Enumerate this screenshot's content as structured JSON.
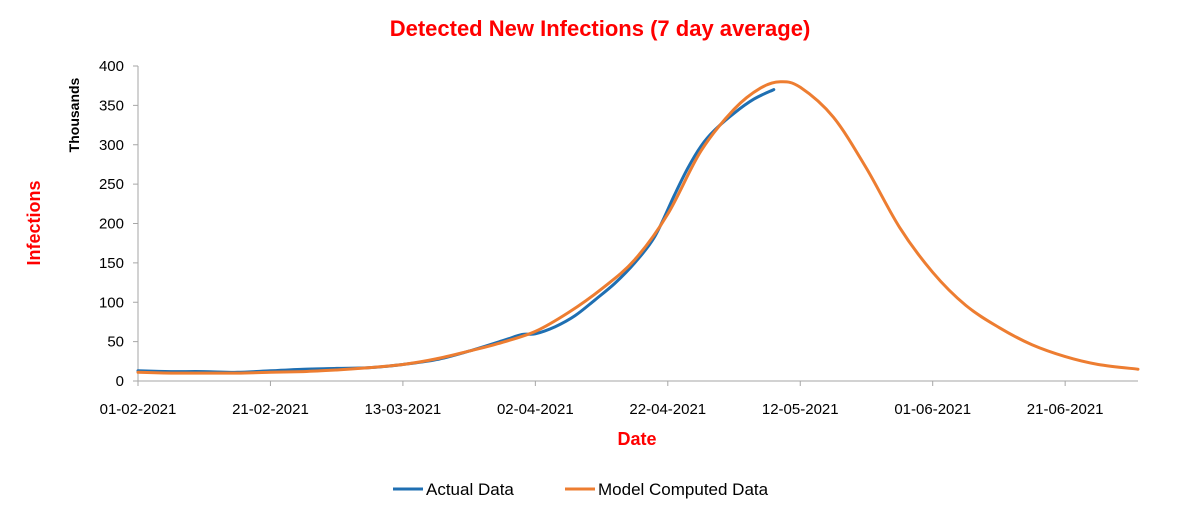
{
  "chart_data": {
    "type": "line",
    "title": "Detected New Infections (7 day average)",
    "ylabel": "Infections",
    "yunits": "Thousands",
    "xlabel": "Date",
    "title_color": "#ff0000",
    "label_color": "#ff0000",
    "ylim": [
      0,
      400
    ],
    "yticks": [
      0,
      50,
      100,
      150,
      200,
      250,
      300,
      350,
      400
    ],
    "xlim": [
      "2021-02-01",
      "2021-07-02"
    ],
    "xticks": [
      "01-02-2021",
      "21-02-2021",
      "13-03-2021",
      "02-04-2021",
      "22-04-2021",
      "12-05-2021",
      "01-06-2021",
      "21-06-2021"
    ],
    "grid": false,
    "legend_position": "bottom",
    "series": [
      {
        "name": "Actual Data",
        "color": "#1f6fb2",
        "points": [
          [
            "2021-02-01",
            13
          ],
          [
            "2021-02-06",
            12
          ],
          [
            "2021-02-11",
            12
          ],
          [
            "2021-02-16",
            11
          ],
          [
            "2021-02-21",
            13
          ],
          [
            "2021-02-26",
            15
          ],
          [
            "2021-03-03",
            16
          ],
          [
            "2021-03-08",
            17
          ],
          [
            "2021-03-13",
            21
          ],
          [
            "2021-03-18",
            27
          ],
          [
            "2021-03-23",
            38
          ],
          [
            "2021-03-28",
            51
          ],
          [
            "2021-03-31",
            59
          ],
          [
            "2021-04-02",
            60
          ],
          [
            "2021-04-05",
            69
          ],
          [
            "2021-04-08",
            83
          ],
          [
            "2021-04-11",
            103
          ],
          [
            "2021-04-14",
            124
          ],
          [
            "2021-04-17",
            150
          ],
          [
            "2021-04-20",
            183
          ],
          [
            "2021-04-23",
            236
          ],
          [
            "2021-04-25",
            270
          ],
          [
            "2021-04-27",
            298
          ],
          [
            "2021-04-29",
            318
          ],
          [
            "2021-05-02",
            340
          ],
          [
            "2021-05-05",
            358
          ],
          [
            "2021-05-08",
            370
          ]
        ]
      },
      {
        "name": "Model Computed Data",
        "color": "#ed7d31",
        "points": [
          [
            "2021-02-01",
            11
          ],
          [
            "2021-02-06",
            10
          ],
          [
            "2021-02-11",
            10
          ],
          [
            "2021-02-16",
            10
          ],
          [
            "2021-02-21",
            11
          ],
          [
            "2021-02-26",
            12
          ],
          [
            "2021-03-03",
            14
          ],
          [
            "2021-03-08",
            17
          ],
          [
            "2021-03-13",
            21
          ],
          [
            "2021-03-18",
            28
          ],
          [
            "2021-03-23",
            38
          ],
          [
            "2021-03-28",
            49
          ],
          [
            "2021-04-02",
            63
          ],
          [
            "2021-04-07",
            87
          ],
          [
            "2021-04-12",
            117
          ],
          [
            "2021-04-17",
            154
          ],
          [
            "2021-04-22",
            212
          ],
          [
            "2021-04-27",
            292
          ],
          [
            "2021-05-02",
            345
          ],
          [
            "2021-05-06",
            372
          ],
          [
            "2021-05-09",
            380
          ],
          [
            "2021-05-12",
            373
          ],
          [
            "2021-05-17",
            335
          ],
          [
            "2021-05-22",
            270
          ],
          [
            "2021-05-27",
            195
          ],
          [
            "2021-06-01",
            138
          ],
          [
            "2021-06-06",
            96
          ],
          [
            "2021-06-11",
            68
          ],
          [
            "2021-06-16",
            46
          ],
          [
            "2021-06-21",
            31
          ],
          [
            "2021-06-26",
            21
          ],
          [
            "2021-07-02",
            15
          ]
        ]
      }
    ]
  }
}
